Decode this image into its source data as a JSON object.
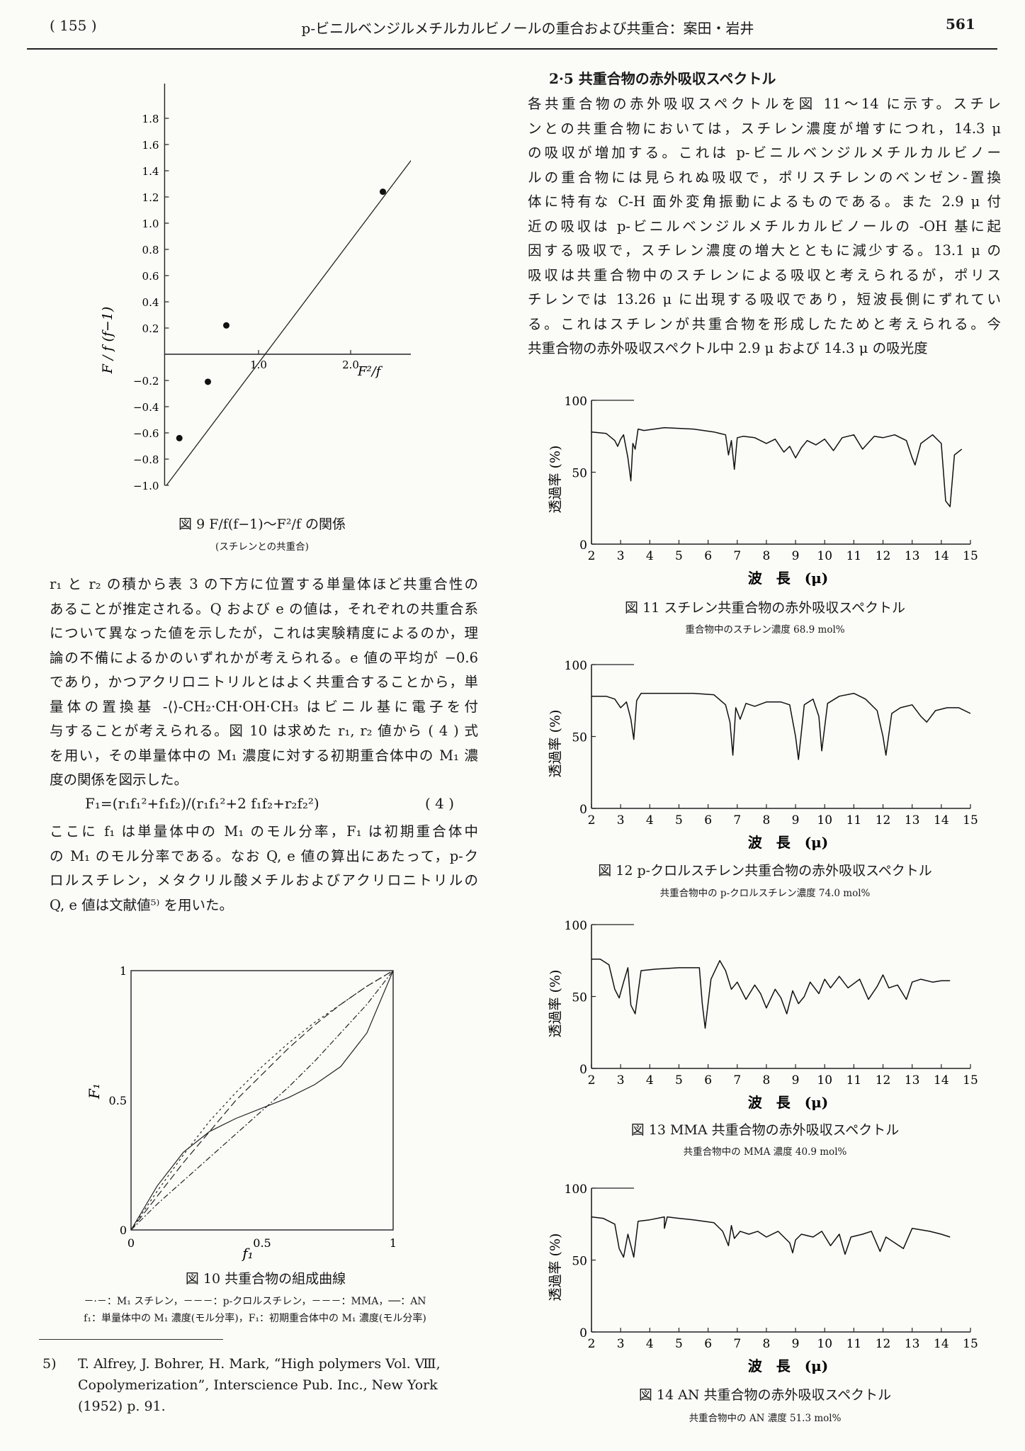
{
  "header": {
    "page_num_left": "( 155 )",
    "running_title": "p-ビニルベンジルメチルカルビノールの重合および共重合：案田・岩井",
    "page_num_right": "561"
  },
  "section": {
    "heading": "2·5  共重合物の赤外吸収スペクトル",
    "lines": [
      "各共重合物の赤外吸収スペクトルを図 11〜14 に示す。スチレ",
      "ンとの共重合物においては，スチレン濃度が増すにつれ，14.3 μ",
      "の吸収が増加する。これは p-ビニルベンジルメチルカルビノー",
      "ルの重合物には見られぬ吸収で，ポリスチレンのベンゼン-置換",
      "体に特有な C-H 面外変角振動によるものである。また 2.9 μ 付",
      "近の吸収は p-ビニルベンジルメチルカルビノールの -OH 基に起",
      "因する吸収で，スチレン濃度の増大とともに減少する。13.1 μ の",
      "吸収は共重合物中のスチレンによる吸収と考えられるが，ポリス",
      "チレンでは 13.26 μ に出現する吸収であり，短波長側にずれてい",
      "る。これはスチレンが共重合物を形成したためと考えられる。今",
      "共重合物の赤外吸収スペクトル中 2.9 μ および 14.3 μ の吸光度"
    ]
  },
  "left_text": {
    "lines": [
      "r₁ と r₂ の積から表 3 の下方に位置する単量体ほど共重合性の",
      "あることが推定される。Q および e の値は，それぞれの共重合系",
      "について異なった値を示したが，これは実験精度によるのか，理",
      "論の不備によるかのいずれかが考えられる。e 値の平均が −0.6",
      "であり，かつアクリロニトリルとはよく共重合することから，単",
      "量体の置換基 -⟨⟩-CH₂·CH·OH·CH₃ はビニル基に電子を付",
      "与することが考えられる。図 10 は求めた r₁, r₂ 値から ( 4 ) 式",
      "を用い，その単量体中の M₁ 濃度に対する初期重合体中の M₁ 濃",
      "度の関係を図示した。"
    ],
    "equation": "F₁=(r₁f₁²+f₁f₂)/(r₁f₁²+2 f₁f₂+r₂f₂²)",
    "equation_number": "( 4 )",
    "lines2": [
      "ここに f₁ は単量体中の M₁ のモル分率，F₁ は初期重合体中",
      "の M₁ のモル分率である。なお Q, e 値の算出にあたって，p-ク",
      "ロルスチレン，メタクリル酸メチルおよびアクリロニトリルの",
      "Q, e 値は文献値⁵⁾ を用いた。"
    ]
  },
  "figures": {
    "fig9": {
      "caption": "図 9    F/f(f−1)〜F²/f の関係",
      "subcaption": "(スチレンとの共重合)",
      "y_label": "F / f (f−1)",
      "x_label": "F²/f"
    },
    "fig10": {
      "caption": "図 10   共重合物の組成曲線",
      "legend": "－·－：M₁ スチレン，－－－：p-クロルスチレン，－－－：MMA，──：AN",
      "note": "f₁：単量体中の M₁ 濃度(モル分率)，F₁：初期重合体中の M₁ 濃度(モル分率)",
      "x_label": "f₁",
      "y_label": "F₁"
    },
    "fig11": {
      "caption": "図  11    スチレン共重合物の赤外吸収スペクトル",
      "subcaption": "重合物中のスチレン濃度  68.9 mol%"
    },
    "fig12": {
      "caption": "図  12    p-クロルスチレン共重合物の赤外吸収スペクトル",
      "subcaption": "共重合物中の p-クロルスチレン濃度  74.0 mol%"
    },
    "fig13": {
      "caption": "図  13    MMA  共重合物の赤外吸収スペクトル",
      "subcaption": "共重合物中の  MMA  濃度  40.9 mol%"
    },
    "fig14": {
      "caption": "図  14    AN  共重合物の赤外吸収スペクトル",
      "subcaption": "共重合物中の  AN  濃度  51.3 mol%"
    },
    "ir_axis": {
      "y_label": "透過率 (%)",
      "x_label": "波　長　(μ)"
    }
  },
  "chart_data": [
    {
      "type": "scatter",
      "id": "fig9",
      "xlabel": "F²/f",
      "ylabel": "F / f (f−1)",
      "xlim": [
        -0.1,
        3.6
      ],
      "ylim": [
        -1.05,
        1.95
      ],
      "x_ticks": [
        "1.0",
        "2.0",
        "3.0"
      ],
      "y_ticks": [
        "1.8",
        "1.6",
        "1.4",
        "1.2",
        "1.0",
        "0.8",
        "0.6",
        "0.4",
        "0.2",
        "−0.2",
        "−0.4",
        "−0.6",
        "−0.8",
        "−1.0"
      ],
      "x": [
        0.14,
        0.45,
        0.65,
        2.35
      ],
      "y": [
        -0.64,
        -0.21,
        0.22,
        1.24
      ],
      "fit_line": {
        "x": [
          0,
          3.0
        ],
        "y": [
          -1.0,
          1.8
        ]
      }
    },
    {
      "type": "line",
      "id": "fig10",
      "xlabel": "f₁",
      "ylabel": "F₁",
      "xlim": [
        0,
        1
      ],
      "ylim": [
        0,
        1
      ],
      "x_ticks": [
        "0",
        "0.5",
        "1"
      ],
      "y_ticks": [
        "0",
        "0.5",
        "1"
      ],
      "series": [
        {
          "name": "スチレン",
          "x": [
            0,
            0.1,
            0.2,
            0.3,
            0.4,
            0.5,
            0.6,
            0.7,
            0.8,
            0.9,
            1.0
          ],
          "y": [
            0,
            0.1,
            0.19,
            0.28,
            0.37,
            0.46,
            0.55,
            0.65,
            0.76,
            0.87,
            1.0
          ]
        },
        {
          "name": "p-クロルスチレン",
          "x": [
            0,
            0.1,
            0.2,
            0.3,
            0.4,
            0.5,
            0.6,
            0.7,
            0.8,
            0.9,
            1.0
          ],
          "y": [
            0,
            0.15,
            0.29,
            0.42,
            0.53,
            0.63,
            0.72,
            0.8,
            0.87,
            0.94,
            1.0
          ]
        },
        {
          "name": "MMA",
          "x": [
            0,
            0.1,
            0.2,
            0.3,
            0.4,
            0.5,
            0.6,
            0.7,
            0.8,
            0.9,
            1.0
          ],
          "y": [
            0,
            0.13,
            0.26,
            0.38,
            0.5,
            0.6,
            0.7,
            0.79,
            0.87,
            0.94,
            1.0
          ]
        },
        {
          "name": "AN",
          "x": [
            0,
            0.1,
            0.2,
            0.3,
            0.4,
            0.5,
            0.6,
            0.7,
            0.8,
            0.9,
            1.0
          ],
          "y": [
            0,
            0.17,
            0.3,
            0.38,
            0.43,
            0.47,
            0.51,
            0.56,
            0.63,
            0.76,
            1.0
          ]
        }
      ]
    },
    {
      "type": "line",
      "id": "fig11",
      "xlabel": "波　長　(μ)",
      "ylabel": "透過率 (%)",
      "xlim": [
        2,
        15
      ],
      "ylim": [
        0,
        100
      ],
      "x_ticks": [
        "2",
        "3",
        "4",
        "5",
        "6",
        "7",
        "8",
        "9",
        "10",
        "11",
        "12",
        "13",
        "14",
        "15"
      ],
      "y_ticks": [
        "0",
        "50",
        "100"
      ],
      "x": [
        2,
        2.5,
        2.8,
        2.9,
        3.0,
        3.1,
        3.25,
        3.35,
        3.42,
        3.5,
        3.6,
        3.8,
        4.5,
        5.5,
        6.2,
        6.6,
        6.7,
        6.8,
        6.9,
        7.0,
        7.2,
        7.6,
        8.0,
        8.3,
        8.6,
        8.8,
        9.0,
        9.2,
        9.4,
        9.7,
        10.0,
        10.3,
        10.6,
        11.0,
        11.3,
        11.7,
        12.0,
        12.4,
        12.8,
        13.0,
        13.1,
        13.3,
        13.7,
        14.0,
        14.15,
        14.3,
        14.45,
        14.7
      ],
      "y": [
        78,
        77,
        72,
        68,
        73,
        76,
        60,
        44,
        70,
        66,
        80,
        79,
        81,
        80,
        78,
        76,
        62,
        72,
        52,
        74,
        75,
        74,
        70,
        73,
        64,
        68,
        60,
        67,
        72,
        69,
        73,
        65,
        74,
        76,
        66,
        75,
        74,
        76,
        72,
        60,
        55,
        70,
        76,
        70,
        30,
        26,
        62,
        66
      ]
    },
    {
      "type": "line",
      "id": "fig12",
      "xlabel": "波　長　(μ)",
      "ylabel": "透過率 (%)",
      "xlim": [
        2,
        15
      ],
      "ylim": [
        0,
        100
      ],
      "x_ticks": [
        "2",
        "3",
        "4",
        "5",
        "6",
        "7",
        "8",
        "9",
        "10",
        "11",
        "12",
        "13",
        "14",
        "15"
      ],
      "y_ticks": [
        "0",
        "50",
        "100"
      ],
      "x": [
        2,
        2.5,
        2.8,
        3.0,
        3.2,
        3.35,
        3.45,
        3.55,
        3.7,
        4.5,
        5.5,
        6.2,
        6.6,
        6.75,
        6.85,
        6.95,
        7.1,
        7.3,
        7.6,
        8.0,
        8.5,
        8.8,
        9.0,
        9.1,
        9.3,
        9.6,
        9.8,
        9.9,
        10.1,
        10.5,
        11.0,
        11.4,
        11.8,
        12.0,
        12.1,
        12.3,
        12.6,
        13.0,
        13.3,
        13.5,
        13.8,
        14.2,
        14.6,
        15
      ],
      "y": [
        78,
        78,
        76,
        70,
        74,
        62,
        48,
        75,
        80,
        80,
        80,
        79,
        72,
        60,
        37,
        70,
        62,
        73,
        71,
        74,
        74,
        72,
        50,
        34,
        72,
        76,
        64,
        40,
        73,
        78,
        80,
        76,
        68,
        50,
        37,
        66,
        70,
        72,
        64,
        60,
        68,
        70,
        70,
        66
      ]
    },
    {
      "type": "line",
      "id": "fig13",
      "xlabel": "波　長　(μ)",
      "ylabel": "透過率 (%)",
      "xlim": [
        2,
        15
      ],
      "ylim": [
        0,
        100
      ],
      "x_ticks": [
        "2",
        "3",
        "4",
        "5",
        "6",
        "7",
        "8",
        "9",
        "10",
        "11",
        "12",
        "13",
        "14",
        "15"
      ],
      "y_ticks": [
        "0",
        "50",
        "100"
      ],
      "x": [
        2,
        2.3,
        2.6,
        2.8,
        2.95,
        3.1,
        3.25,
        3.35,
        3.5,
        3.7,
        4.2,
        5.0,
        5.5,
        5.7,
        5.8,
        5.9,
        6.1,
        6.4,
        6.6,
        6.8,
        7.0,
        7.3,
        7.6,
        7.8,
        8.0,
        8.3,
        8.5,
        8.7,
        8.9,
        9.1,
        9.3,
        9.5,
        9.8,
        10.0,
        10.2,
        10.5,
        10.8,
        11.2,
        11.5,
        11.8,
        12.0,
        12.2,
        12.5,
        12.8,
        13.0,
        13.3,
        13.7,
        14.0,
        14.3
      ],
      "y": [
        76,
        76,
        72,
        55,
        49,
        60,
        70,
        44,
        38,
        68,
        69,
        70,
        70,
        70,
        45,
        28,
        62,
        75,
        68,
        55,
        60,
        48,
        58,
        52,
        42,
        55,
        49,
        38,
        54,
        45,
        50,
        60,
        52,
        62,
        56,
        64,
        56,
        62,
        48,
        57,
        65,
        56,
        58,
        48,
        60,
        62,
        60,
        61,
        61
      ]
    },
    {
      "type": "line",
      "id": "fig14",
      "xlabel": "波　長　(μ)",
      "ylabel": "透過率 (%)",
      "xlim": [
        2,
        15
      ],
      "ylim": [
        0,
        100
      ],
      "x_ticks": [
        "2",
        "3",
        "4",
        "5",
        "6",
        "7",
        "8",
        "9",
        "10",
        "11",
        "12",
        "13",
        "14",
        "15"
      ],
      "y_ticks": [
        "0",
        "50",
        "100"
      ],
      "x": [
        2,
        2.4,
        2.8,
        2.95,
        3.1,
        3.25,
        3.35,
        3.45,
        3.6,
        4.0,
        4.5,
        4.5,
        4.6,
        5.0,
        5.5,
        6.2,
        6.5,
        6.7,
        6.8,
        6.9,
        7.1,
        7.4,
        7.7,
        8.0,
        8.4,
        8.8,
        8.9,
        9.0,
        9.2,
        9.6,
        9.9,
        10.2,
        10.5,
        10.7,
        10.9,
        11.3,
        11.6,
        11.9,
        12.1,
        12.4,
        12.7,
        13.0,
        13.6,
        14.0,
        14.3
      ],
      "y": [
        80,
        79,
        75,
        58,
        52,
        68,
        60,
        52,
        77,
        78,
        80,
        72,
        80,
        79,
        78,
        76,
        70,
        60,
        74,
        65,
        70,
        68,
        70,
        66,
        70,
        62,
        55,
        64,
        68,
        66,
        70,
        60,
        68,
        54,
        66,
        68,
        70,
        56,
        66,
        62,
        58,
        72,
        70,
        68,
        66
      ]
    }
  ],
  "footnote": {
    "number": "5)",
    "lines": [
      "T. Alfrey,  J. Bohrer,  H. Mark,  “High polymers Vol. Ⅷ,",
      "Copolymerization”,  Interscience Pub. Inc.,  New York",
      "(1952) p. 91."
    ]
  }
}
